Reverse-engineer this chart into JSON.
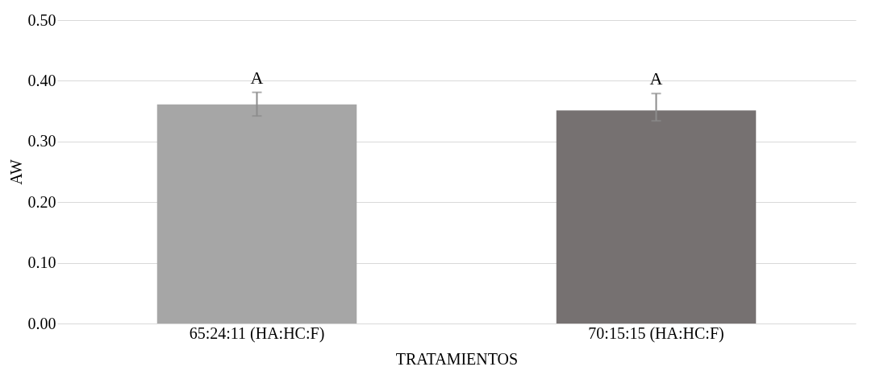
{
  "chart_data": {
    "type": "bar",
    "xlabel": "TRATAMIENTOS",
    "ylabel": "AW",
    "categories": [
      "65:24:11 (HA:HC:F)",
      "70:15:15 (HA:HC:F)"
    ],
    "values": [
      0.361,
      0.351
    ],
    "colors": [
      "#a6a6a6",
      "#767171"
    ],
    "errors": [
      [
        0.342,
        0.381
      ],
      [
        0.334,
        0.379
      ]
    ],
    "ylim": [
      0,
      0.5
    ],
    "yticks": [
      {
        "value": 0,
        "label": "0.00"
      },
      {
        "value": 0.1,
        "label": "0.10"
      },
      {
        "value": 0.2,
        "label": "0.20"
      },
      {
        "value": 0.3,
        "label": "0.30"
      },
      {
        "value": 0.4,
        "label": "0.40"
      },
      {
        "value": 0.5,
        "label": "0.50"
      }
    ],
    "grid": "y",
    "annotations": [
      "A",
      "A"
    ]
  }
}
